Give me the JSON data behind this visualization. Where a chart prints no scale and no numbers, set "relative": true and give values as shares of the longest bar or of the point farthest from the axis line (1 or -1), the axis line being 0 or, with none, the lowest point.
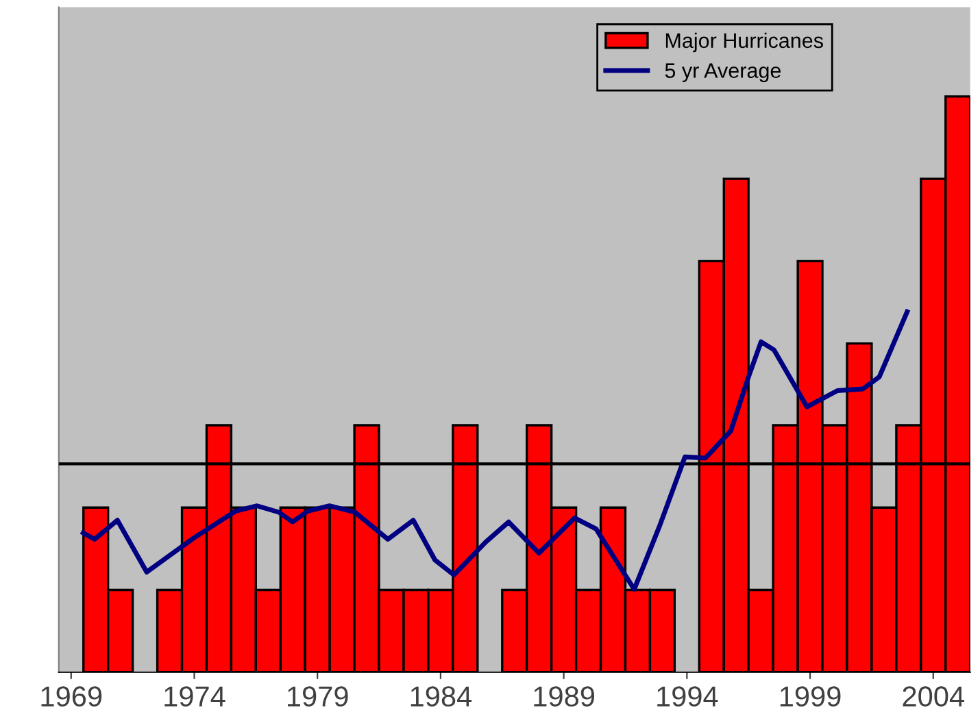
{
  "chart_data": {
    "type": "bar",
    "relative": true,
    "x": [
      1970,
      1971,
      1972,
      1973,
      1974,
      1975,
      1976,
      1977,
      1978,
      1979,
      1980,
      1981,
      1982,
      1983,
      1984,
      1985,
      1986,
      1987,
      1988,
      1989,
      1990,
      1991,
      1992,
      1993,
      1994,
      1995,
      1996,
      1997,
      1998,
      1999,
      2000,
      2001,
      2002,
      2003,
      2004,
      2005
    ],
    "xlim": [
      1968.5,
      2005.5
    ],
    "xticks": [
      1969,
      1974,
      1979,
      1984,
      1989,
      1994,
      1999,
      2004
    ],
    "series": [
      {
        "name": "Major Hurricanes",
        "color": "#ff0000",
        "values": [
          0.286,
          0.143,
          0,
          0.143,
          0.286,
          0.429,
          0.286,
          0.143,
          0.286,
          0.286,
          0.286,
          0.429,
          0.143,
          0.143,
          0.143,
          0.429,
          0,
          0.143,
          0.429,
          0.286,
          0.143,
          0.286,
          0.143,
          0.143,
          0,
          0.714,
          0.857,
          0.143,
          0.429,
          0.714,
          0.429,
          0.571,
          0.286,
          0.429,
          0.857,
          1
        ]
      },
      {
        "name": "5 yr Average",
        "type": "line",
        "color": "#000080",
        "x": [
          1969.49,
          1969.95,
          1970.88,
          1972.07,
          1973.97,
          1975.68,
          1976.55,
          1977.43,
          1977.99,
          1978.61,
          1979.49,
          1980.52,
          1981.86,
          1982.89,
          1983.77,
          1984.54,
          1985.83,
          1986.76,
          1987.99,
          1989.44,
          1990.31,
          1991.86,
          1992.89,
          1993.92,
          1994.75,
          1995.78,
          1996.5,
          1997.01,
          1997.53,
          1998.87,
          2000.11,
          2001.14,
          2001.81,
          2002.94
        ],
        "values": [
          0.242,
          0.231,
          0.264,
          0.174,
          0.233,
          0.28,
          0.289,
          0.278,
          0.261,
          0.28,
          0.289,
          0.278,
          0.231,
          0.264,
          0.195,
          0.169,
          0.226,
          0.261,
          0.207,
          0.268,
          0.249,
          0.144,
          0.254,
          0.374,
          0.372,
          0.419,
          0.513,
          0.574,
          0.56,
          0.461,
          0.489,
          0.492,
          0.513,
          0.626
        ]
      }
    ],
    "ref_lines": [
      {
        "axis": "y",
        "value": 0.362,
        "color": "#000000"
      }
    ],
    "legend": "top right",
    "grid": false
  }
}
